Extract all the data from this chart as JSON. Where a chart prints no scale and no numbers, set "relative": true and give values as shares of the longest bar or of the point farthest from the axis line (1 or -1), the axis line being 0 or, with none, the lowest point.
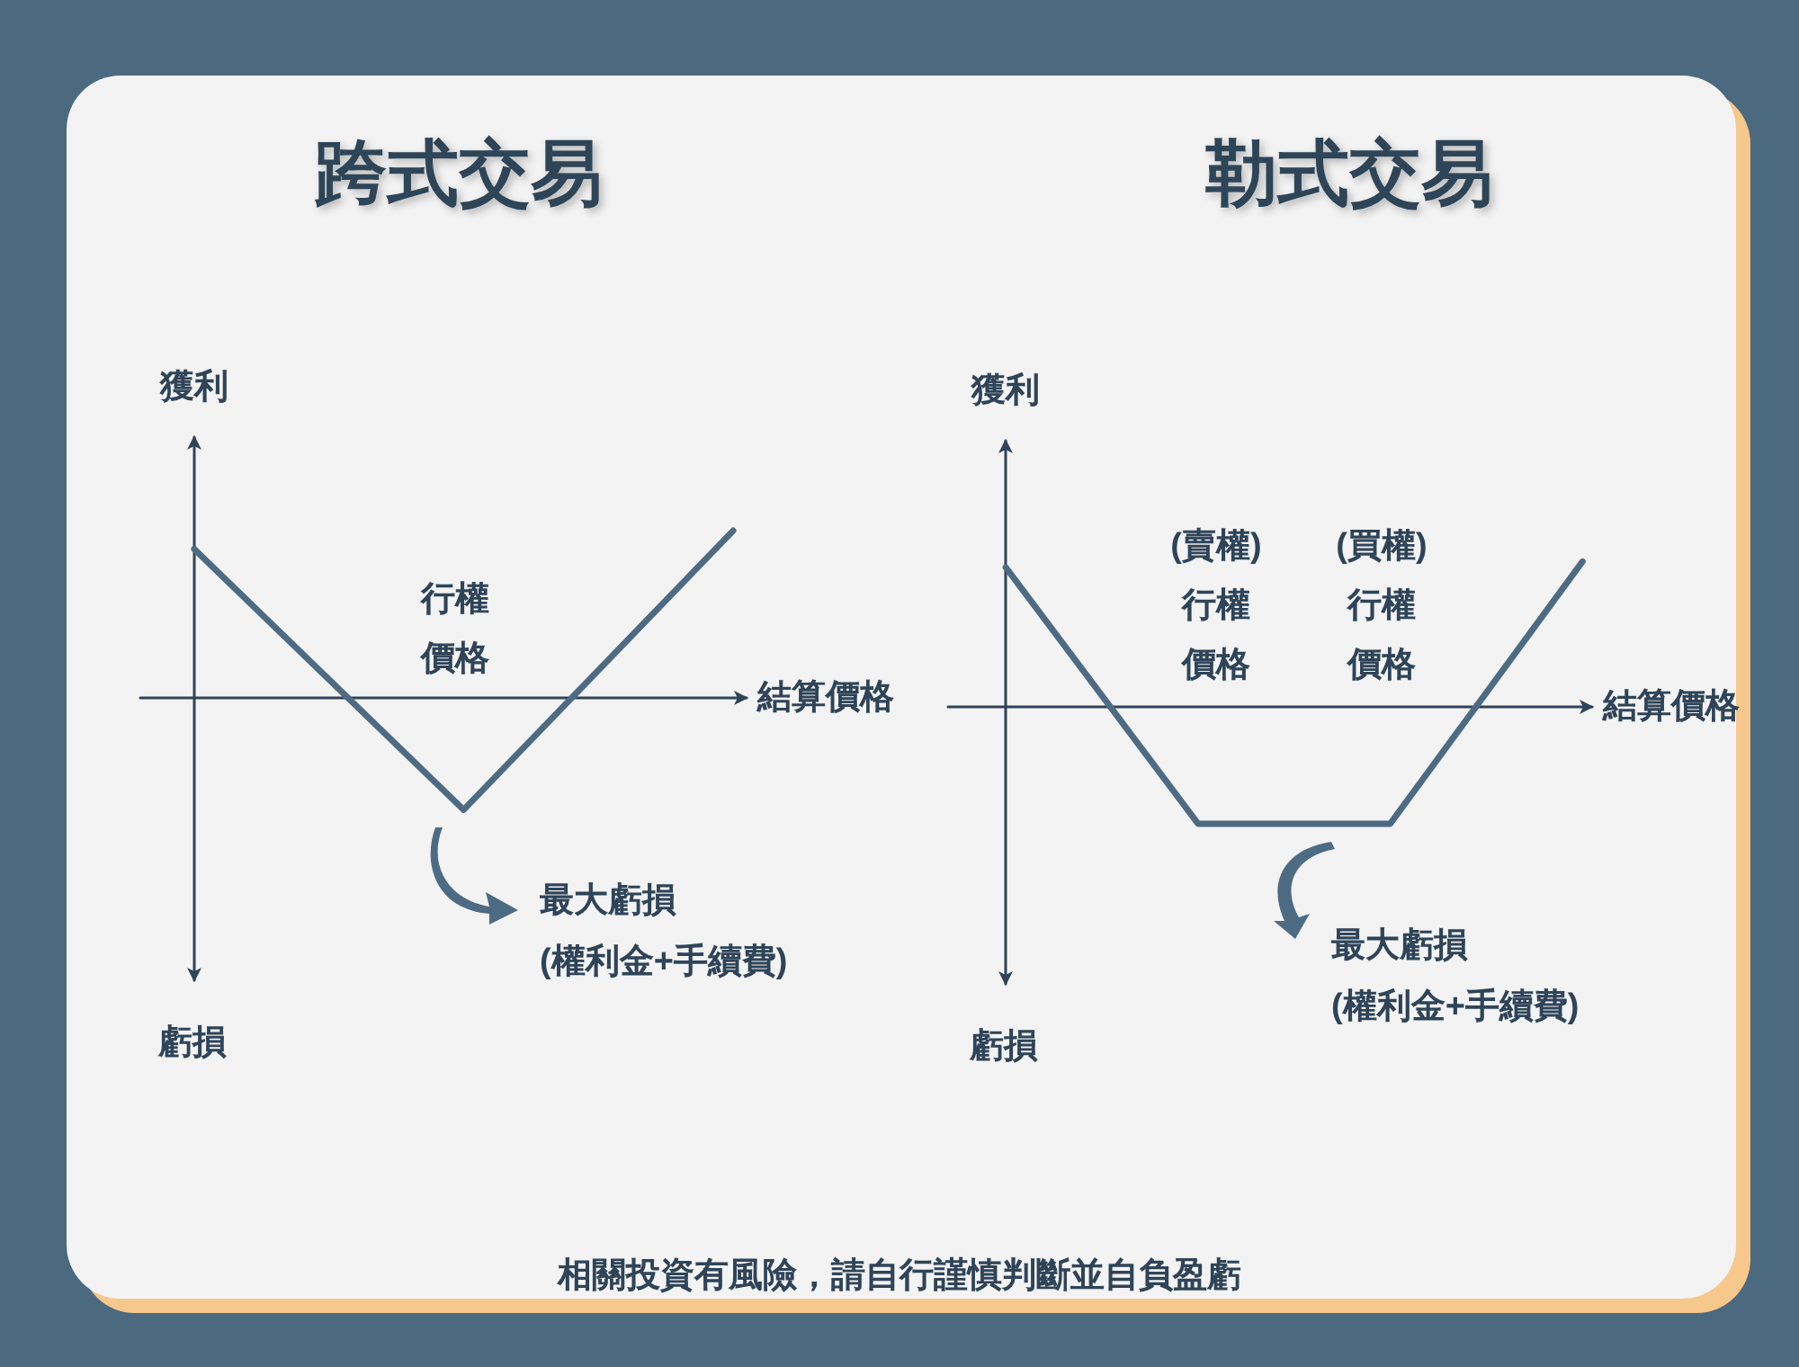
{
  "chart_data": [
    {
      "type": "line",
      "title": "跨式交易",
      "xlabel": "結算價格",
      "ylabel": "獲利",
      "categories": [
        null,
        null,
        null
      ],
      "relative": true,
      "tick_labels": false,
      "marker": "none",
      "line_style": "solid",
      "series": [
        {
          "color": "#4e6b84",
          "values": [
            0.89,
            -0.67,
            1
          ]
        }
      ],
      "annotations": [
        "行權價格",
        "最大虧損\n(權利金+手續費)",
        "虧損",
        "相關投資有風險，請自行謹慎判斷並自負盈虧"
      ]
    },
    {
      "type": "line",
      "title": "勒式交易",
      "xlabel": "結算價格",
      "ylabel": "獲利",
      "categories": [
        null,
        null,
        null,
        null
      ],
      "relative": true,
      "tick_labels": false,
      "marker": "none",
      "line_style": "solid",
      "series": [
        {
          "color": "#4e6b84",
          "values": [
            0.96,
            -0.8,
            -0.8,
            1
          ]
        }
      ],
      "annotations": [
        "(賣權)行權價格",
        "(買權)行權價格",
        "最大虧損\n(權利金+手續費)",
        "虧損"
      ]
    }
  ]
}
